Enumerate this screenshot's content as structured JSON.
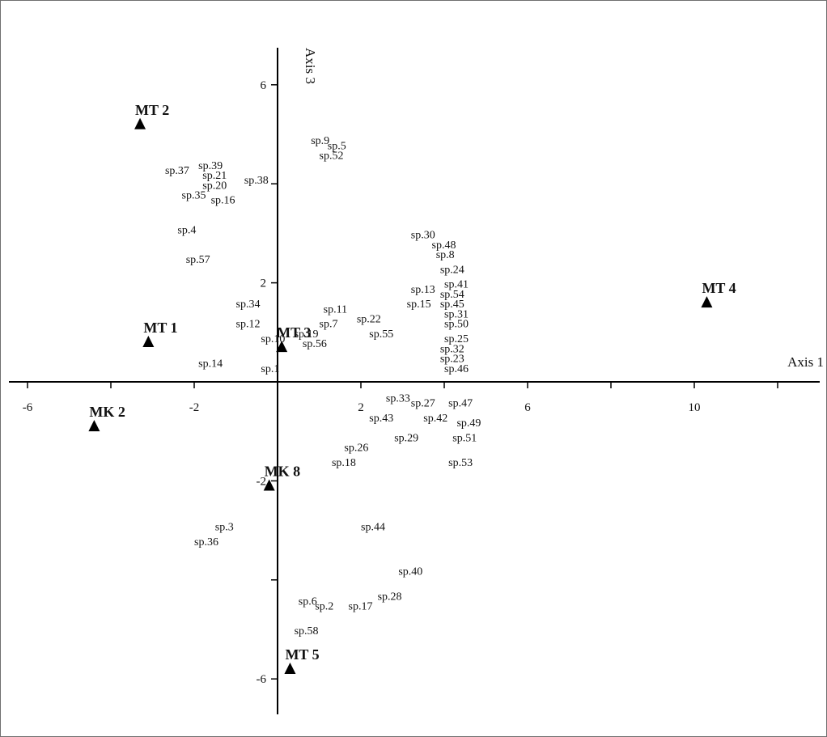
{
  "chart_data": {
    "type": "scatter",
    "xlabel": "Axis 1",
    "ylabel": "Axis 3",
    "xlim": [
      -6.2,
      13.7
    ],
    "ylim": [
      -6.8,
      7.2
    ],
    "x_ticks": [
      -6,
      -2,
      2,
      6,
      10
    ],
    "y_ticks": [
      6,
      2,
      -2,
      -6
    ],
    "x_minor_ticks": [
      -4,
      0,
      4,
      8,
      12
    ],
    "y_minor_ticks": [
      4,
      0,
      -4
    ],
    "sites": [
      {
        "name": "MT 2",
        "x": -3.3,
        "y": 5.2
      },
      {
        "name": "MT 1",
        "x": -3.1,
        "y": 0.8
      },
      {
        "name": "MT 3",
        "x": 0.1,
        "y": 0.7
      },
      {
        "name": "MT 4",
        "x": 10.3,
        "y": 1.6
      },
      {
        "name": "MK 2",
        "x": -4.4,
        "y": -0.9
      },
      {
        "name": "MK 8",
        "x": -0.2,
        "y": -2.1
      },
      {
        "name": "MT 5",
        "x": 0.3,
        "y": -5.8
      }
    ],
    "species": [
      {
        "name": "sp.9",
        "x": 0.8,
        "y": 4.8
      },
      {
        "name": "sp.5",
        "x": 1.2,
        "y": 4.7
      },
      {
        "name": "sp.52",
        "x": 1.0,
        "y": 4.5
      },
      {
        "name": "sp.37",
        "x": -2.7,
        "y": 4.2
      },
      {
        "name": "sp.39",
        "x": -1.9,
        "y": 4.3
      },
      {
        "name": "sp.21",
        "x": -1.8,
        "y": 4.1
      },
      {
        "name": "sp.20",
        "x": -1.8,
        "y": 3.9
      },
      {
        "name": "sp.38",
        "x": -0.8,
        "y": 4.0
      },
      {
        "name": "sp.35",
        "x": -2.3,
        "y": 3.7
      },
      {
        "name": "sp.16",
        "x": -1.6,
        "y": 3.6
      },
      {
        "name": "sp.4",
        "x": -2.4,
        "y": 3.0
      },
      {
        "name": "sp.57",
        "x": -2.2,
        "y": 2.4
      },
      {
        "name": "sp.30",
        "x": 3.2,
        "y": 2.9
      },
      {
        "name": "sp.48",
        "x": 3.7,
        "y": 2.7
      },
      {
        "name": "sp.8",
        "x": 3.8,
        "y": 2.5
      },
      {
        "name": "sp.24",
        "x": 3.9,
        "y": 2.2
      },
      {
        "name": "sp.41",
        "x": 4.0,
        "y": 1.9
      },
      {
        "name": "sp.13",
        "x": 3.2,
        "y": 1.8
      },
      {
        "name": "sp.54",
        "x": 3.9,
        "y": 1.7
      },
      {
        "name": "sp.15",
        "x": 3.1,
        "y": 1.5
      },
      {
        "name": "sp.45",
        "x": 3.9,
        "y": 1.5
      },
      {
        "name": "sp.31",
        "x": 4.0,
        "y": 1.3
      },
      {
        "name": "sp.50",
        "x": 4.0,
        "y": 1.1
      },
      {
        "name": "sp.25",
        "x": 4.0,
        "y": 0.8
      },
      {
        "name": "sp.32",
        "x": 3.9,
        "y": 0.6
      },
      {
        "name": "sp.23",
        "x": 3.9,
        "y": 0.4
      },
      {
        "name": "sp.46",
        "x": 4.0,
        "y": 0.2
      },
      {
        "name": "sp.34",
        "x": -1.0,
        "y": 1.5
      },
      {
        "name": "sp.12",
        "x": -1.0,
        "y": 1.1
      },
      {
        "name": "sp.11",
        "x": 1.1,
        "y": 1.4
      },
      {
        "name": "sp.7",
        "x": 1.0,
        "y": 1.1
      },
      {
        "name": "sp.22",
        "x": 1.9,
        "y": 1.2
      },
      {
        "name": "sp.55",
        "x": 2.2,
        "y": 0.9
      },
      {
        "name": "sp.10",
        "x": -0.4,
        "y": 0.8
      },
      {
        "name": "sp.19",
        "x": 0.4,
        "y": 0.9
      },
      {
        "name": "sp.56",
        "x": 0.6,
        "y": 0.7
      },
      {
        "name": "sp.14",
        "x": -1.9,
        "y": 0.3
      },
      {
        "name": "sp.1",
        "x": -0.4,
        "y": 0.2
      },
      {
        "name": "sp.33",
        "x": 2.6,
        "y": -0.4
      },
      {
        "name": "sp.27",
        "x": 3.2,
        "y": -0.5
      },
      {
        "name": "sp.47",
        "x": 4.1,
        "y": -0.5
      },
      {
        "name": "sp.43",
        "x": 2.2,
        "y": -0.8
      },
      {
        "name": "sp.42",
        "x": 3.5,
        "y": -0.8
      },
      {
        "name": "sp.49",
        "x": 4.3,
        "y": -0.9
      },
      {
        "name": "sp.29",
        "x": 2.8,
        "y": -1.2
      },
      {
        "name": "sp.51",
        "x": 4.2,
        "y": -1.2
      },
      {
        "name": "sp.26",
        "x": 1.6,
        "y": -1.4
      },
      {
        "name": "sp.18",
        "x": 1.3,
        "y": -1.7
      },
      {
        "name": "sp.53",
        "x": 4.1,
        "y": -1.7
      },
      {
        "name": "sp.3",
        "x": -1.5,
        "y": -3.0
      },
      {
        "name": "sp.36",
        "x": -2.0,
        "y": -3.3
      },
      {
        "name": "sp.44",
        "x": 2.0,
        "y": -3.0
      },
      {
        "name": "sp.40",
        "x": 2.9,
        "y": -3.9
      },
      {
        "name": "sp.28",
        "x": 2.4,
        "y": -4.4
      },
      {
        "name": "sp.6",
        "x": 0.5,
        "y": -4.5
      },
      {
        "name": "sp.2",
        "x": 0.9,
        "y": -4.6
      },
      {
        "name": "sp.17",
        "x": 1.7,
        "y": -4.6
      },
      {
        "name": "sp.58",
        "x": 0.4,
        "y": -5.1
      }
    ]
  }
}
